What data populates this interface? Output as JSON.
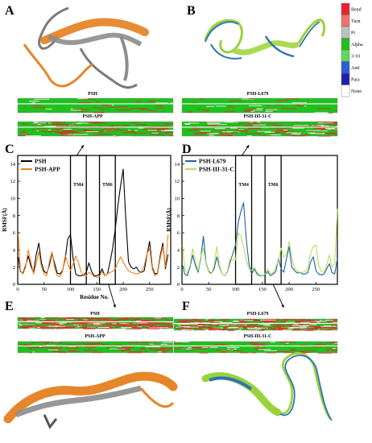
{
  "panels": {
    "A": "A",
    "B": "B",
    "C": "C",
    "D": "D",
    "E": "E",
    "F": "F"
  },
  "dssp_key": {
    "items": [
      {
        "label": "Bend",
        "color": "#e8242a"
      },
      {
        "label": "Turn",
        "color": "#f07070"
      },
      {
        "label": "Pi",
        "color": "#bfbfbf"
      },
      {
        "label": "Alpha",
        "color": "#20c020"
      },
      {
        "label": "3-10",
        "color": "#5fd85f"
      },
      {
        "label": "Anti",
        "color": "#2b5ed8"
      },
      {
        "label": "Para",
        "color": "#2020b0"
      },
      {
        "label": "None",
        "color": "#ffffff"
      }
    ]
  },
  "dssp_labels": {
    "top_left_1": "PSH",
    "top_left_2": "PSH-APP",
    "top_right_1": "PSH-L679",
    "top_right_2": "PSH-III-31-C",
    "bottom_left_1": "PSH",
    "bottom_left_2": "PSH-APP",
    "bottom_right_1": "PSH-L679",
    "bottom_right_2": "PSH-III-31-C"
  },
  "chart_data": [
    {
      "type": "line",
      "panel": "C",
      "xlabel": "Residue No.",
      "ylabel": "RMSF(Å)",
      "xlim": [
        0,
        290
      ],
      "ylim": [
        0,
        15
      ],
      "xticks": [
        0,
        50,
        100,
        150,
        200,
        250
      ],
      "yticks": [
        0,
        2,
        4,
        6,
        8,
        10,
        12,
        14
      ],
      "regions": [
        {
          "label": "TM4",
          "x0": 100,
          "x1": 130
        },
        {
          "label": "TM6",
          "x0": 155,
          "x1": 185
        }
      ],
      "x": [
        1,
        5,
        10,
        15,
        20,
        25,
        30,
        35,
        40,
        45,
        50,
        55,
        60,
        65,
        70,
        75,
        80,
        85,
        90,
        95,
        100,
        105,
        110,
        115,
        120,
        125,
        130,
        135,
        140,
        145,
        150,
        155,
        160,
        165,
        170,
        175,
        180,
        185,
        190,
        195,
        200,
        205,
        210,
        215,
        220,
        225,
        230,
        235,
        240,
        245,
        250,
        255,
        260,
        265,
        270,
        275,
        280,
        285
      ],
      "series": [
        {
          "name": "PSH",
          "color": "#000000",
          "values": [
            3.2,
            1.5,
            1.3,
            2.2,
            3.3,
            2.1,
            1.4,
            3.4,
            4.8,
            2.5,
            1.5,
            1.3,
            2.2,
            3.6,
            2.4,
            1.3,
            1.2,
            1.6,
            3.0,
            5.3,
            5.8,
            3.0,
            1.2,
            1.0,
            1.0,
            1.1,
            1.4,
            2.5,
            1.5,
            1.0,
            1.0,
            1.2,
            1.8,
            1.0,
            1.2,
            2.6,
            4.2,
            6.5,
            9.2,
            11.5,
            13.4,
            7.5,
            2.6,
            2.0,
            1.8,
            2.0,
            1.5,
            1.4,
            1.6,
            3.4,
            5.0,
            2.0,
            1.2,
            1.3,
            3.3,
            4.8,
            1.8,
            3.5
          ]
        },
        {
          "name": "PSH-APP",
          "color": "#f08020",
          "values": [
            5.8,
            1.6,
            1.2,
            2.0,
            4.0,
            2.6,
            1.2,
            2.4,
            3.8,
            2.0,
            1.2,
            1.0,
            2.6,
            3.8,
            1.9,
            1.0,
            0.9,
            1.5,
            3.4,
            2.4,
            1.6,
            2.4,
            3.3,
            2.6,
            1.5,
            1.0,
            1.0,
            1.4,
            1.2,
            0.9,
            0.8,
            0.9,
            1.5,
            1.0,
            1.2,
            1.4,
            1.5,
            1.8,
            2.6,
            3.2,
            2.6,
            2.0,
            1.6,
            1.4,
            1.3,
            1.2,
            1.3,
            1.5,
            2.2,
            3.5,
            4.2,
            1.8,
            1.0,
            1.2,
            3.0,
            4.4,
            2.0,
            5.8
          ]
        }
      ]
    },
    {
      "type": "line",
      "panel": "D",
      "xlabel": "",
      "ylabel": "RMSF(Å)",
      "xlim": [
        0,
        290
      ],
      "ylim": [
        0,
        15
      ],
      "xticks": [
        0,
        50,
        100,
        150,
        200,
        250
      ],
      "yticks": [
        0,
        2,
        4,
        6,
        8,
        10,
        12,
        14
      ],
      "regions": [
        {
          "label": "TM4",
          "x0": 100,
          "x1": 130
        },
        {
          "label": "TM6",
          "x0": 155,
          "x1": 185
        }
      ],
      "x": [
        1,
        5,
        10,
        15,
        20,
        25,
        30,
        35,
        40,
        45,
        50,
        55,
        60,
        65,
        70,
        75,
        80,
        85,
        90,
        95,
        100,
        105,
        110,
        115,
        120,
        125,
        130,
        135,
        140,
        145,
        150,
        155,
        160,
        165,
        170,
        175,
        180,
        185,
        190,
        195,
        200,
        205,
        210,
        215,
        220,
        225,
        230,
        235,
        240,
        245,
        250,
        255,
        260,
        265,
        270,
        275,
        280,
        285,
        290
      ],
      "series": [
        {
          "name": "PSH-L679",
          "color": "#1f5fa8",
          "values": [
            2.2,
            1.2,
            1.0,
            2.0,
            3.4,
            2.2,
            1.4,
            3.0,
            5.6,
            2.5,
            1.5,
            1.3,
            1.8,
            3.2,
            2.0,
            1.2,
            1.0,
            1.5,
            2.6,
            3.6,
            4.6,
            7.2,
            8.5,
            9.5,
            5.2,
            2.4,
            1.2,
            1.8,
            1.2,
            1.0,
            1.0,
            1.1,
            1.5,
            1.0,
            1.2,
            1.5,
            3.0,
            1.8,
            1.4,
            3.0,
            4.4,
            2.0,
            1.6,
            1.3,
            1.4,
            1.2,
            1.2,
            1.4,
            2.6,
            3.2,
            1.6,
            1.2,
            1.1,
            1.2,
            1.8,
            2.4,
            1.4,
            1.2,
            3.0
          ]
        },
        {
          "name": "PSH-III-31-C",
          "color": "#b5e05a",
          "values": [
            4.6,
            1.8,
            1.3,
            2.2,
            4.2,
            2.6,
            1.6,
            3.2,
            4.2,
            2.4,
            1.4,
            1.2,
            2.2,
            4.4,
            2.2,
            1.2,
            1.0,
            1.6,
            3.0,
            2.8,
            2.8,
            6.0,
            5.6,
            4.4,
            2.8,
            1.8,
            1.6,
            2.0,
            1.4,
            1.1,
            1.0,
            1.2,
            1.8,
            1.2,
            1.4,
            2.0,
            2.8,
            4.2,
            3.2,
            3.4,
            5.0,
            3.2,
            1.8,
            1.6,
            1.4,
            1.4,
            1.5,
            2.0,
            3.6,
            4.4,
            4.6,
            2.2,
            1.5,
            1.4,
            2.2,
            3.4,
            2.0,
            2.4,
            8.8
          ]
        }
      ]
    }
  ]
}
